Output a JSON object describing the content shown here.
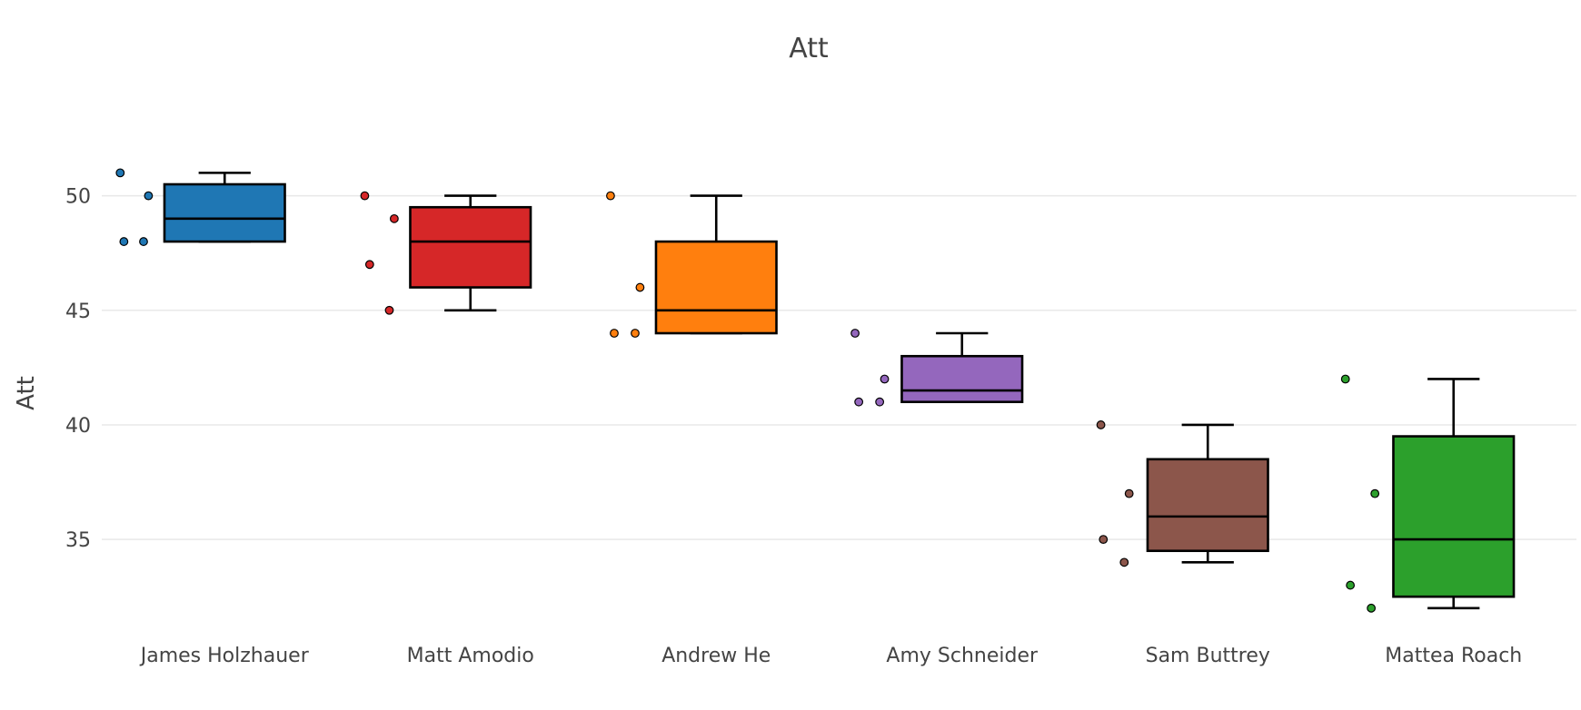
{
  "chart_data": {
    "type": "box",
    "title": "Att",
    "xlabel": "",
    "ylabel": "Att",
    "ylim": [
      31.2,
      52.6
    ],
    "yticks": [
      35,
      40,
      45,
      50
    ],
    "grid": true,
    "legend": "none",
    "categories": [
      "James Holzhauer",
      "Matt Amodio",
      "Andrew He",
      "Amy Schneider",
      "Sam Buttrey",
      "Mattea Roach"
    ],
    "series": [
      {
        "name": "James Holzhauer",
        "color": "#1f77b4",
        "q1": 48,
        "median": 49,
        "q3": 50.5,
        "lowerfence": 48,
        "upperfence": 51,
        "points": [
          {
            "jitter": -0.85,
            "y": 51
          },
          {
            "jitter": -0.82,
            "y": 48
          },
          {
            "jitter": -0.62,
            "y": 50
          },
          {
            "jitter": -0.66,
            "y": 48
          }
        ]
      },
      {
        "name": "Matt Amodio",
        "color": "#d62728",
        "q1": 46,
        "median": 48,
        "q3": 49.5,
        "lowerfence": 45,
        "upperfence": 50,
        "points": [
          {
            "jitter": -0.86,
            "y": 50
          },
          {
            "jitter": -0.62,
            "y": 49
          },
          {
            "jitter": -0.82,
            "y": 47
          },
          {
            "jitter": -0.66,
            "y": 45
          }
        ]
      },
      {
        "name": "Andrew He",
        "color": "#ff7f0e",
        "q1": 44,
        "median": 45,
        "q3": 48,
        "lowerfence": 44,
        "upperfence": 50,
        "points": [
          {
            "jitter": -0.86,
            "y": 50
          },
          {
            "jitter": -0.62,
            "y": 46
          },
          {
            "jitter": -0.83,
            "y": 44
          },
          {
            "jitter": -0.66,
            "y": 44
          }
        ]
      },
      {
        "name": "Amy Schneider",
        "color": "#9467bd",
        "q1": 41,
        "median": 41.5,
        "q3": 43,
        "lowerfence": 41,
        "upperfence": 44,
        "points": [
          {
            "jitter": -0.87,
            "y": 44
          },
          {
            "jitter": -0.63,
            "y": 42
          },
          {
            "jitter": -0.84,
            "y": 41
          },
          {
            "jitter": -0.67,
            "y": 41
          }
        ]
      },
      {
        "name": "Sam Buttrey",
        "color": "#8c564b",
        "q1": 34.5,
        "median": 36,
        "q3": 38.5,
        "lowerfence": 34,
        "upperfence": 40,
        "points": [
          {
            "jitter": -0.87,
            "y": 40
          },
          {
            "jitter": -0.64,
            "y": 37
          },
          {
            "jitter": -0.85,
            "y": 35
          },
          {
            "jitter": -0.68,
            "y": 34
          }
        ]
      },
      {
        "name": "Mattea Roach",
        "color": "#2ca02c",
        "q1": 32.5,
        "median": 35,
        "q3": 39.5,
        "lowerfence": 32,
        "upperfence": 42,
        "points": [
          {
            "jitter": -0.88,
            "y": 42
          },
          {
            "jitter": -0.64,
            "y": 37
          },
          {
            "jitter": -0.84,
            "y": 33
          },
          {
            "jitter": -0.67,
            "y": 32
          }
        ]
      }
    ]
  }
}
